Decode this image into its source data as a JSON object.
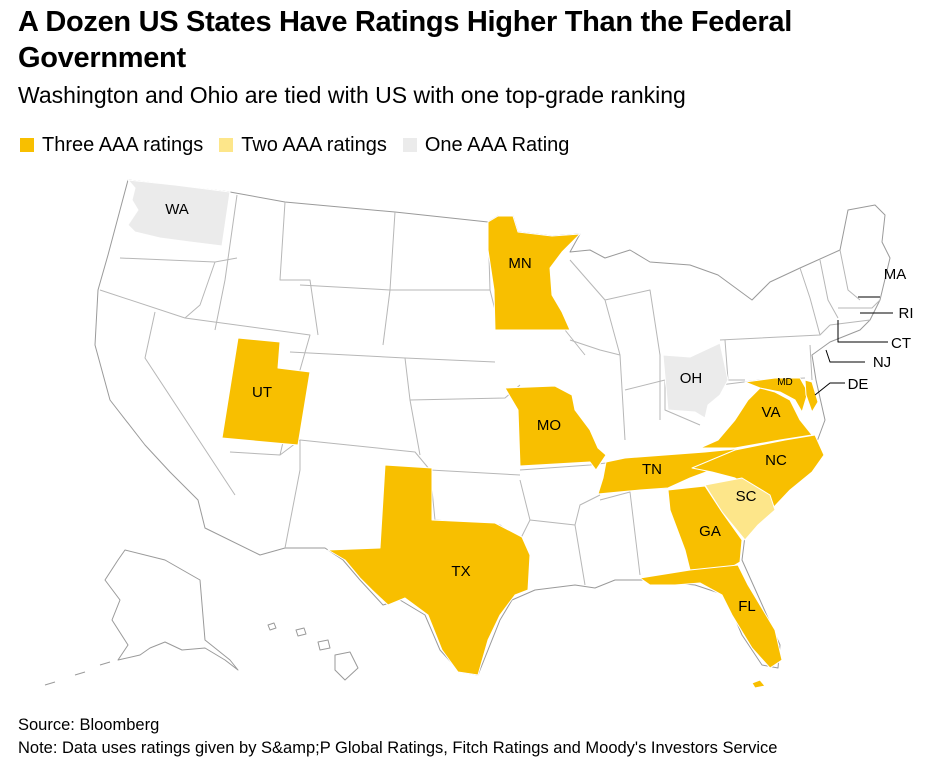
{
  "title": "A Dozen US States Have Ratings Higher Than the Federal Government",
  "subtitle": "Washington and Ohio are tied with US with one top-grade ranking",
  "legend": [
    {
      "label": "Three AAA ratings",
      "color": "#f8bf00"
    },
    {
      "label": "Two AAA ratings",
      "color": "#fde68a"
    },
    {
      "label": "One AAA Rating",
      "color": "#ebebeb"
    }
  ],
  "colors": {
    "default": "#ffffff",
    "border": "#b7b7b7",
    "outline": "#9a9a9a"
  },
  "states": {
    "WA": {
      "label": "WA",
      "tier": "One AAA Rating"
    },
    "MN": {
      "label": "MN",
      "tier": "Three AAA ratings"
    },
    "UT": {
      "label": "UT",
      "tier": "Three AAA ratings"
    },
    "OH": {
      "label": "OH",
      "tier": "One AAA Rating"
    },
    "MO": {
      "label": "MO",
      "tier": "Three AAA ratings"
    },
    "TX": {
      "label": "TX",
      "tier": "Three AAA ratings"
    },
    "TN": {
      "label": "TN",
      "tier": "Three AAA ratings"
    },
    "NC": {
      "label": "NC",
      "tier": "Three AAA ratings"
    },
    "SC": {
      "label": "SC",
      "tier": "Two AAA ratings"
    },
    "GA": {
      "label": "GA",
      "tier": "Three AAA ratings"
    },
    "FL": {
      "label": "FL",
      "tier": "Three AAA ratings"
    },
    "VA": {
      "label": "VA",
      "tier": "Three AAA ratings"
    },
    "MD": {
      "label": "MD",
      "tier": "Three AAA ratings"
    },
    "DE": {
      "label": "DE",
      "tier": "Three AAA ratings"
    }
  },
  "callouts": {
    "MA": "MA",
    "RI": "RI",
    "CT": "CT",
    "NJ": "NJ"
  },
  "source": "Source: Bloomberg",
  "note": "Note: Data uses ratings given by S&amp;P Global Ratings, Fitch Ratings and Moody's Investors Service"
}
